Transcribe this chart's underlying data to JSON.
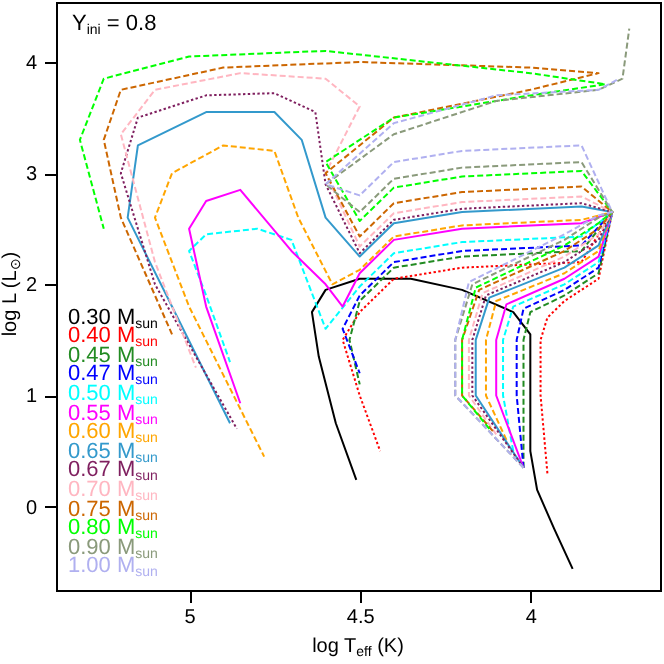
{
  "chart_data": {
    "type": "line",
    "xlabel": "log T$_{eff}$  (K)",
    "ylabel": "log L (L$_{⊙}$)",
    "annotations": [
      "Y$_{ini}$ = 0.8"
    ],
    "xlim": [
      5.39,
      3.62
    ],
    "ylim": [
      -0.75,
      4.54
    ],
    "xticks": [
      5,
      4.5,
      4
    ],
    "yticks": [
      0,
      1,
      2,
      3,
      4
    ],
    "grid": false,
    "legend": "bottom left",
    "series": [
      {
        "name": "0.30 M$_{sun}$",
        "color": "#000000",
        "line_style": "solid",
        "x": [
          4.51,
          4.57,
          4.62,
          4.64,
          4.6,
          4.5,
          4.35,
          4.2,
          4.05,
          4.0,
          4.0,
          4.0,
          3.98,
          3.93,
          3.876
        ],
        "values": [
          0.24,
          0.75,
          1.35,
          1.75,
          1.95,
          2.05,
          2.05,
          1.95,
          1.75,
          1.55,
          1.0,
          0.5,
          0.15,
          -0.2,
          -0.56
        ]
      },
      {
        "name": "0.40 M$_{sun}$",
        "color": "#ff0000",
        "line_style": "dotted",
        "x": [
          3.95,
          3.97,
          3.97,
          3.95,
          3.9,
          3.8,
          3.76,
          3.85,
          4.2,
          4.4,
          4.5,
          4.55,
          4.5,
          4.44
        ],
        "values": [
          0.3,
          1.0,
          1.5,
          1.7,
          1.85,
          2.05,
          2.65,
          2.2,
          2.15,
          2.05,
          1.75,
          1.5,
          1.0,
          0.5
        ]
      },
      {
        "name": "0.45 M$_{sun}$",
        "color": "#228b22",
        "line_style": "dashed",
        "x": [
          4.02,
          4.02,
          4.02,
          4.0,
          3.9,
          3.8,
          3.76,
          3.85,
          4.2,
          4.4,
          4.5,
          4.53,
          4.5
        ],
        "values": [
          0.35,
          1.0,
          1.5,
          1.75,
          1.9,
          2.1,
          2.65,
          2.3,
          2.25,
          2.15,
          1.85,
          1.5,
          1.1
        ]
      },
      {
        "name": "0.47 M$_{sun}$",
        "color": "#0000ff",
        "line_style": "dashed",
        "x": [
          4.02,
          4.04,
          4.04,
          4.02,
          3.9,
          3.8,
          3.76,
          3.85,
          4.2,
          4.4,
          4.5,
          4.55,
          4.5
        ],
        "values": [
          0.35,
          1.0,
          1.5,
          1.78,
          1.95,
          2.15,
          2.65,
          2.35,
          2.3,
          2.2,
          1.9,
          1.6,
          1.2
        ]
      },
      {
        "name": "0.50 M$_{sun}$",
        "color": "#00ffff",
        "line_style": "dashed",
        "x": [
          4.05,
          4.08,
          4.08,
          4.05,
          3.9,
          3.8,
          3.76,
          3.85,
          4.2,
          4.4,
          4.5,
          4.6,
          4.7,
          4.8,
          4.95,
          5.0,
          4.95,
          4.88
        ],
        "values": [
          0.5,
          1.0,
          1.5,
          1.8,
          2.0,
          2.2,
          2.65,
          2.43,
          2.38,
          2.28,
          1.98,
          1.6,
          2.4,
          2.5,
          2.45,
          2.3,
          1.9,
          1.3
        ]
      },
      {
        "name": "0.55 M$_{sun}$",
        "color": "#ff00ff",
        "line_style": "solid",
        "x": [
          4.02,
          4.1,
          4.1,
          4.07,
          3.9,
          3.8,
          3.76,
          3.85,
          4.2,
          4.4,
          4.5,
          4.55,
          4.6,
          4.7,
          4.85,
          4.95,
          5.0,
          4.95,
          4.85
        ],
        "values": [
          0.35,
          1.0,
          1.5,
          1.82,
          2.05,
          2.25,
          2.65,
          2.55,
          2.5,
          2.4,
          2.1,
          1.8,
          2.0,
          2.3,
          2.85,
          2.75,
          2.5,
          1.8,
          0.93
        ]
      },
      {
        "name": "0.60 M$_{sun}$",
        "color": "#ffa500",
        "line_style": "dashed",
        "x": [
          4.07,
          4.13,
          4.13,
          4.1,
          3.9,
          3.8,
          3.76,
          3.85,
          4.2,
          4.4,
          4.5,
          4.58,
          4.68,
          4.75,
          4.9,
          5.05,
          5.1,
          5.0,
          4.78
        ],
        "values": [
          0.6,
          1.0,
          1.5,
          1.85,
          2.1,
          2.3,
          2.65,
          2.58,
          2.53,
          2.43,
          2.13,
          2.0,
          2.6,
          3.2,
          3.25,
          3.0,
          2.6,
          1.8,
          0.45
        ]
      },
      {
        "name": "0.65 M$_{sun}$",
        "color": "#3399cc",
        "line_style": "solid",
        "x": [
          4.02,
          4.16,
          4.16,
          4.12,
          3.9,
          3.8,
          3.76,
          3.85,
          4.2,
          4.4,
          4.5,
          4.6,
          4.67,
          4.75,
          4.95,
          5.15,
          5.18,
          5.05,
          4.88
        ],
        "values": [
          0.35,
          1.0,
          1.5,
          1.88,
          2.15,
          2.35,
          2.65,
          2.7,
          2.65,
          2.55,
          2.25,
          2.6,
          3.3,
          3.55,
          3.55,
          3.25,
          2.6,
          1.8,
          0.75
        ]
      },
      {
        "name": "0.67 M$_{sun}$",
        "color": "#7f1f5f",
        "line_style": "dotted",
        "x": [
          4.02,
          4.17,
          4.17,
          4.13,
          3.9,
          3.8,
          3.76,
          3.85,
          4.2,
          4.4,
          4.5,
          4.6,
          4.63,
          4.75,
          4.95,
          5.15,
          5.2,
          5.1,
          4.86
        ],
        "values": [
          0.35,
          1.0,
          1.5,
          1.9,
          2.2,
          2.4,
          2.65,
          2.73,
          2.68,
          2.58,
          2.28,
          2.9,
          3.55,
          3.72,
          3.7,
          3.5,
          3.0,
          2.0,
          0.7
        ]
      },
      {
        "name": "0.70 M$_{sun}$",
        "color": "#ffb6c1",
        "line_style": "dashed",
        "x": [
          4.1,
          4.18,
          4.18,
          4.14,
          3.9,
          3.8,
          3.76,
          3.85,
          4.2,
          4.4,
          4.5,
          4.6,
          4.5,
          4.6,
          4.85,
          5.1,
          5.2,
          5.1,
          4.98
        ],
        "values": [
          0.65,
          1.0,
          1.5,
          1.92,
          2.25,
          2.45,
          2.65,
          2.79,
          2.74,
          2.64,
          2.34,
          3.0,
          3.6,
          3.85,
          3.9,
          3.75,
          3.35,
          2.2,
          1.25
        ]
      },
      {
        "name": "0.75 M$_{sun}$",
        "color": "#cc6600",
        "line_style": "dashed",
        "x": [
          4.11,
          4.2,
          4.2,
          4.15,
          3.9,
          3.8,
          3.76,
          3.85,
          4.2,
          4.4,
          4.5,
          4.6,
          4.4,
          4.0,
          3.8,
          4.0,
          4.5,
          4.9,
          5.2,
          5.25,
          5.2,
          5.05
        ],
        "values": [
          0.68,
          1.0,
          1.5,
          1.95,
          2.3,
          2.5,
          2.65,
          2.88,
          2.83,
          2.73,
          2.43,
          3.0,
          3.5,
          3.75,
          3.9,
          3.95,
          4.0,
          3.95,
          3.75,
          3.3,
          2.6,
          1.55
        ]
      },
      {
        "name": "0.80 M$_{sun}$",
        "color": "#00ff00",
        "line_style": "dashed",
        "x": [
          4.12,
          4.2,
          4.2,
          4.16,
          3.9,
          3.8,
          3.76,
          3.85,
          4.2,
          4.4,
          4.5,
          4.6,
          4.4,
          4.0,
          3.78,
          4.0,
          4.6,
          5.0,
          5.25,
          5.32,
          5.25
        ],
        "values": [
          0.7,
          1.0,
          1.5,
          1.97,
          2.35,
          2.55,
          2.65,
          3.02,
          2.97,
          2.87,
          2.57,
          3.1,
          3.5,
          3.7,
          3.8,
          3.9,
          4.1,
          4.05,
          3.85,
          3.3,
          2.5
        ]
      },
      {
        "name": "0.90 M$_{sun}$",
        "color": "#8a9a7b",
        "line_style": "dashed",
        "x": [
          4.02,
          4.22,
          4.22,
          4.17,
          3.9,
          3.8,
          3.76,
          3.85,
          4.2,
          4.4,
          4.5,
          4.6,
          4.4,
          4.1,
          3.8,
          3.73,
          3.71
        ],
        "values": [
          0.35,
          1.0,
          1.5,
          2.0,
          2.4,
          2.6,
          2.65,
          3.1,
          3.05,
          2.95,
          2.65,
          2.9,
          3.35,
          3.65,
          3.75,
          3.85,
          4.3
        ]
      },
      {
        "name": "1.00 M$_{sun}$",
        "color": "#b0b0f0",
        "line_style": "dashed",
        "x": [
          4.02,
          4.22,
          4.22,
          4.18,
          3.9,
          3.8,
          3.76,
          3.85,
          4.2,
          4.4,
          4.5,
          4.6,
          4.4,
          4.1,
          3.8,
          3.74
        ],
        "values": [
          0.35,
          1.0,
          1.5,
          2.02,
          2.45,
          2.62,
          2.65,
          3.25,
          3.2,
          3.1,
          2.8,
          2.9,
          3.45,
          3.7,
          3.75,
          3.85
        ]
      }
    ]
  }
}
